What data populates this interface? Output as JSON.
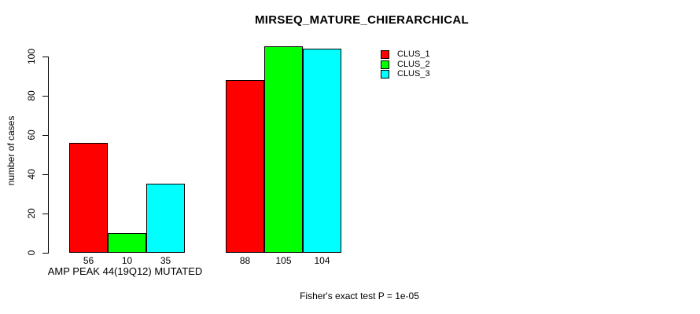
{
  "chart_data": {
    "type": "bar",
    "title": "MIRSEQ_MATURE_CHIERARCHICAL",
    "ylabel": "number of cases",
    "xlabel": "",
    "categories": [
      "AMP PEAK 44(19Q12) MUTATED",
      ""
    ],
    "series": [
      {
        "name": "CLUS_1",
        "color": "#ff0000",
        "values": [
          56,
          88
        ]
      },
      {
        "name": "CLUS_2",
        "color": "#00ff00",
        "values": [
          10,
          105
        ]
      },
      {
        "name": "CLUS_3",
        "color": "#00ffff",
        "values": [
          35,
          104
        ]
      }
    ],
    "bar_value_labels": [
      [
        "56",
        "10",
        "35"
      ],
      [
        "88",
        "105",
        "104"
      ]
    ],
    "yticks": [
      0,
      20,
      40,
      60,
      80,
      100
    ],
    "ylim": [
      0,
      109
    ],
    "grid": false,
    "legend_position": "top-right",
    "annotation": "Fisher's exact test P = 1e-05"
  },
  "colors": {
    "background": "#ffffff",
    "axis": "#000000",
    "bar_border": "#000000",
    "text": "#000000"
  }
}
